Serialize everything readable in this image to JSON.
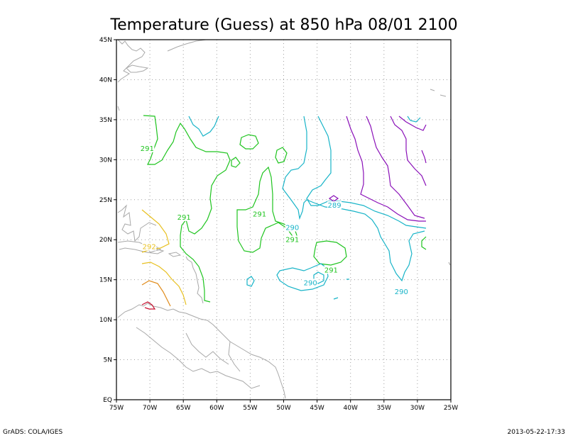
{
  "title": "Temperature (Guess) at 850 hPa 08/01 2100",
  "footer_left": "GrADS: COLA/IGES",
  "footer_right": "2013-05-22-17:33",
  "colors": {
    "green": "#1fc41f",
    "cyan": "#18b4c8",
    "purple": "#8a10b8",
    "yellow": "#e8c020",
    "orange": "#e08a18",
    "red": "#c81030",
    "coast": "#a8a8a8",
    "grid": "#a0a0a0"
  },
  "map": {
    "lon_range": [
      -75,
      -25
    ],
    "lat_range": [
      0,
      45
    ],
    "grid": true,
    "x_ticks": [
      {
        "lon": -75,
        "label": "75W"
      },
      {
        "lon": -70,
        "label": "70W"
      },
      {
        "lon": -65,
        "label": "65W"
      },
      {
        "lon": -60,
        "label": "60W"
      },
      {
        "lon": -55,
        "label": "55W"
      },
      {
        "lon": -50,
        "label": "50W"
      },
      {
        "lon": -45,
        "label": "45W"
      },
      {
        "lon": -40,
        "label": "40W"
      },
      {
        "lon": -35,
        "label": "35W"
      },
      {
        "lon": -30,
        "label": "30W"
      },
      {
        "lon": -25,
        "label": "25W"
      }
    ],
    "y_ticks": [
      {
        "lat": 0,
        "label": "EQ"
      },
      {
        "lat": 5,
        "label": "5N"
      },
      {
        "lat": 10,
        "label": "10N"
      },
      {
        "lat": 15,
        "label": "15N"
      },
      {
        "lat": 20,
        "label": "20N"
      },
      {
        "lat": 25,
        "label": "25N"
      },
      {
        "lat": 30,
        "label": "30N"
      },
      {
        "lat": 35,
        "label": "35N"
      },
      {
        "lat": 40,
        "label": "40N"
      },
      {
        "lat": 45,
        "label": "45N"
      }
    ]
  },
  "contour_labels": [
    {
      "text": "291",
      "lon": -70.4,
      "lat": 31.2,
      "color": "green"
    },
    {
      "text": "291",
      "lon": -64.9,
      "lat": 22.6,
      "color": "green"
    },
    {
      "text": "291",
      "lon": -53.6,
      "lat": 23.0,
      "color": "green"
    },
    {
      "text": "291",
      "lon": -48.7,
      "lat": 19.8,
      "color": "green"
    },
    {
      "text": "291",
      "lon": -42.9,
      "lat": 16.0,
      "color": "green"
    },
    {
      "text": "292",
      "lon": -70.1,
      "lat": 18.9,
      "color": "yellow"
    },
    {
      "text": "289",
      "lon": -42.4,
      "lat": 24.1,
      "color": "cyan"
    },
    {
      "text": "290",
      "lon": -48.7,
      "lat": 21.3,
      "color": "cyan"
    },
    {
      "text": "290",
      "lon": -46.0,
      "lat": 14.4,
      "color": "cyan"
    },
    {
      "text": "290",
      "lon": -32.4,
      "lat": 13.3,
      "color": "cyan"
    }
  ]
}
